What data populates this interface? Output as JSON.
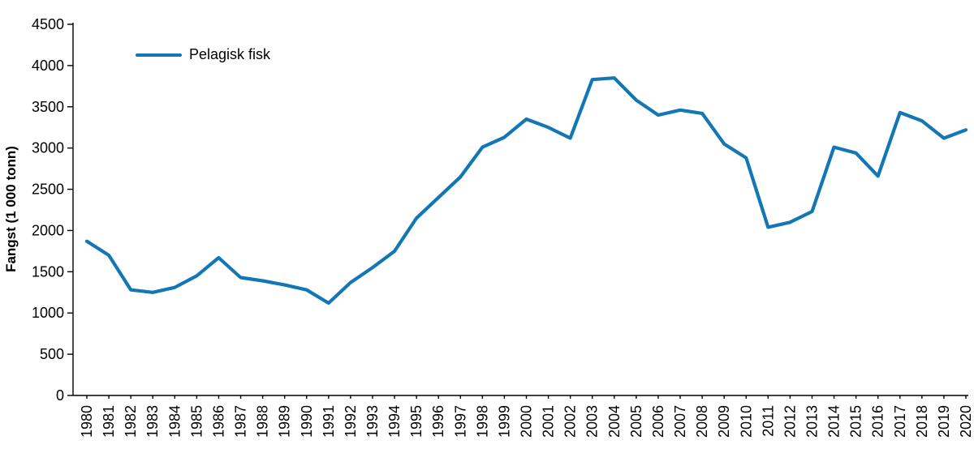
{
  "chart_data": {
    "type": "line",
    "title": "",
    "xlabel": "",
    "ylabel": "Fangst (1 000 tonn)",
    "ylim": [
      0,
      4500
    ],
    "ytick_step": 500,
    "grid": false,
    "legend_position": "top-left-inside",
    "line_color": "#1277b4",
    "axis_color": "#000000",
    "categories": [
      "1980",
      "1981",
      "1982",
      "1983",
      "1984",
      "1985",
      "1986",
      "1987",
      "1988",
      "1989",
      "1990",
      "1991",
      "1992",
      "1993",
      "1994",
      "1995",
      "1996",
      "1997",
      "1998",
      "1999",
      "2000",
      "2001",
      "2002",
      "2003",
      "2004",
      "2005",
      "2006",
      "2007",
      "2008",
      "2009",
      "2010",
      "2011",
      "2012",
      "2013",
      "2014",
      "2015",
      "2016",
      "2017",
      "2018",
      "2019",
      "2020"
    ],
    "series": [
      {
        "name": "Pelagisk fisk",
        "values": [
          1870,
          1700,
          1280,
          1250,
          1310,
          1450,
          1670,
          1430,
          1390,
          1340,
          1280,
          1120,
          1370,
          1550,
          1750,
          2150,
          2400,
          2650,
          3010,
          3130,
          3350,
          3250,
          3120,
          3830,
          3850,
          3580,
          3400,
          3460,
          3420,
          3050,
          2880,
          2040,
          2100,
          2230,
          3010,
          2940,
          2660,
          3430,
          3330,
          3120,
          3220
        ]
      }
    ]
  }
}
